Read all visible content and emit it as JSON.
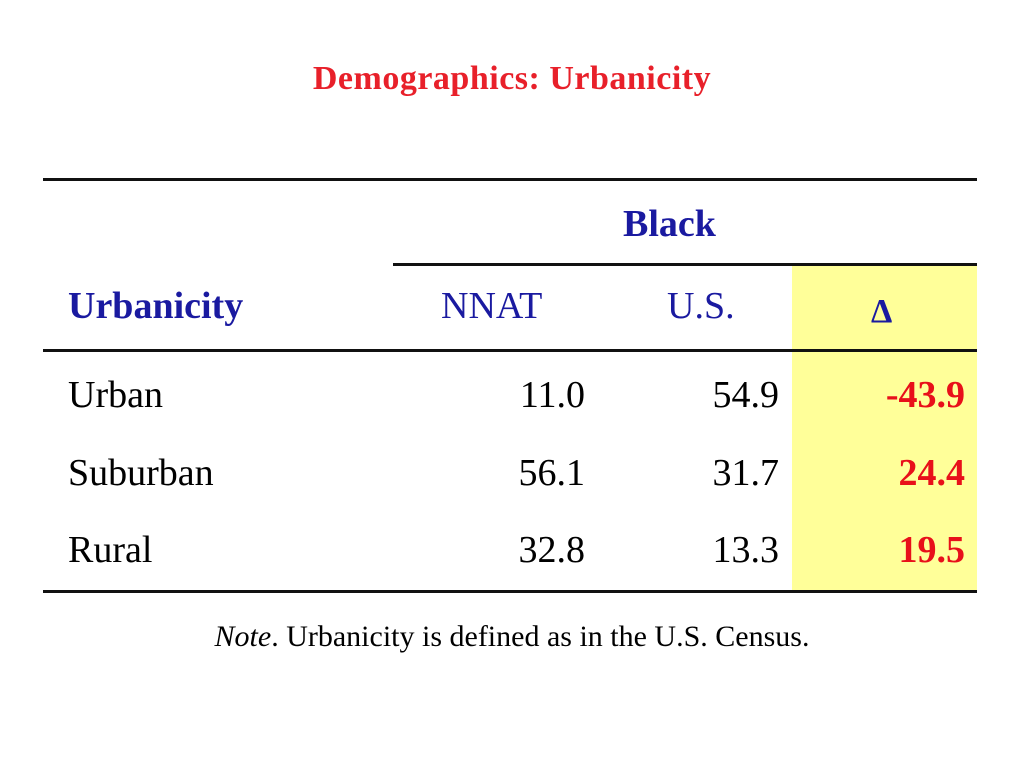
{
  "title": "Demographics: Urbanicity",
  "table": {
    "group_header": "Black",
    "row_header_label": "Urbanicity",
    "columns": [
      "NNAT",
      "U.S.",
      "Δ"
    ],
    "rows": [
      {
        "label": "Urban",
        "nnat": "11.0",
        "us": "54.9",
        "delta": "-43.9"
      },
      {
        "label": "Suburban",
        "nnat": "56.1",
        "us": "31.7",
        "delta": "24.4"
      },
      {
        "label": "Rural",
        "nnat": "32.8",
        "us": "13.3",
        "delta": "19.5"
      }
    ],
    "highlight_color": "#ffff99",
    "header_color": "#1a1aa0",
    "delta_color": "#e8101a"
  },
  "note": {
    "lead": "Note",
    "text": ". Urbanicity is defined as in the U.S. Census."
  },
  "title_color": "#e8202a"
}
